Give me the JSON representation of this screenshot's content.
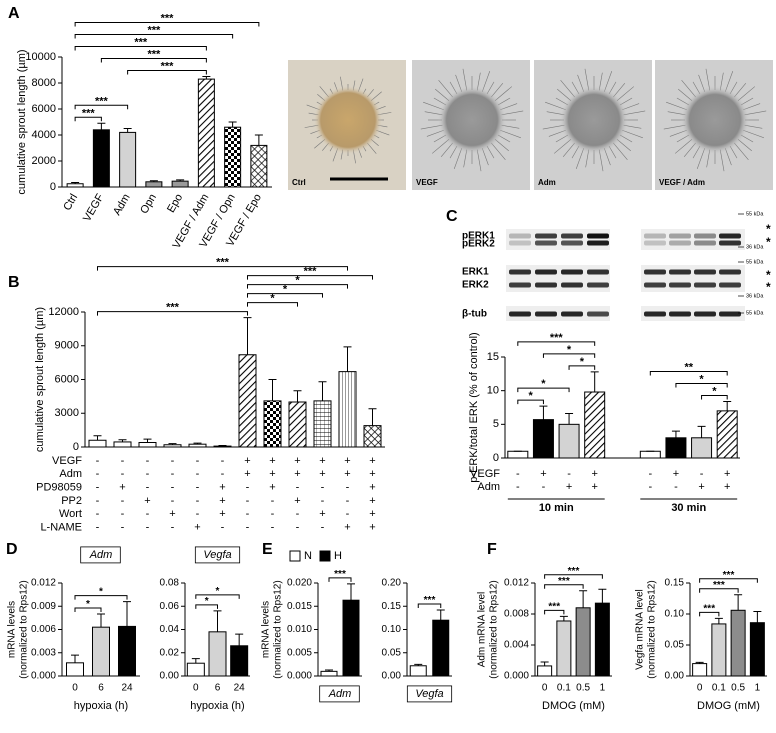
{
  "panels": [
    "A",
    "B",
    "C",
    "D",
    "E",
    "F"
  ],
  "photos": [
    "Ctrl",
    "VEGF",
    "Adm",
    "VEGF / Adm"
  ],
  "blot": {
    "rows": [
      "pERK1",
      "pERK2",
      "ERK1",
      "ERK2",
      "β-tub"
    ],
    "markers": [
      "55 kDa",
      "36 kDa",
      "55 kDa",
      "36 kDa",
      "55 kDa"
    ],
    "asterisks": [
      "*",
      "*",
      "*",
      "*"
    ]
  },
  "chart_data": [
    {
      "type": "bar",
      "ylabel": "cumulative sprout length (µm)",
      "categories": [
        "Ctrl",
        "VEGF",
        "Adm",
        "Opn",
        "Epo",
        "VEGF / Adm",
        "VEGF / Opn",
        "VEGF / Epo"
      ],
      "values": [
        250,
        4400,
        4200,
        400,
        450,
        8300,
        4600,
        3200
      ],
      "errors": [
        100,
        500,
        300,
        80,
        100,
        200,
        400,
        800
      ],
      "colors": [
        "#ffffff",
        "#000000",
        "#d3d3d3",
        "#9a9a9a",
        "#9a9a9a",
        "diagonal",
        "checker",
        "cross"
      ],
      "ylim": [
        0,
        10000
      ],
      "yticks": [
        0,
        2000,
        4000,
        6000,
        8000,
        10000
      ],
      "brackets": [
        {
          "from": 0,
          "to": 7,
          "label": "***"
        },
        {
          "from": 0,
          "to": 6,
          "label": "***"
        },
        {
          "from": 0,
          "to": 5,
          "label": "***"
        },
        {
          "from": 1,
          "to": 5,
          "label": "***"
        },
        {
          "from": 2,
          "to": 5,
          "label": "***"
        },
        {
          "from": 0,
          "to": 2,
          "label": "***"
        },
        {
          "from": 0,
          "to": 1,
          "label": "***"
        }
      ]
    },
    {
      "type": "bar",
      "ylabel": "cumulative sprout length (µm)",
      "values": [
        600,
        450,
        400,
        200,
        250,
        80,
        8200,
        4100,
        4000,
        4100,
        6700,
        1900
      ],
      "errors": [
        400,
        200,
        300,
        100,
        100,
        50,
        3300,
        1900,
        1000,
        1700,
        2200,
        1500
      ],
      "colors": [
        "#ffffff",
        "#ffffff",
        "#ffffff",
        "#ffffff",
        "#ffffff",
        "#ffffff",
        "diagonal",
        "checker",
        "diagonal",
        "grid",
        "vertical",
        "cross"
      ],
      "ylim": [
        0,
        12000
      ],
      "yticks": [
        0,
        3000,
        6000,
        9000,
        12000
      ],
      "table": [
        {
          "name": "VEGF",
          "values": [
            "-",
            "-",
            "-",
            "-",
            "-",
            "-",
            "+",
            "+",
            "+",
            "+",
            "+",
            "+"
          ]
        },
        {
          "name": "Adm",
          "values": [
            "-",
            "-",
            "-",
            "-",
            "-",
            "-",
            "+",
            "+",
            "+",
            "+",
            "+",
            "+"
          ]
        },
        {
          "name": "PD98059",
          "values": [
            "-",
            "+",
            "-",
            "-",
            "-",
            "+",
            "-",
            "+",
            "-",
            "-",
            "-",
            "+"
          ]
        },
        {
          "name": "PP2",
          "values": [
            "-",
            "-",
            "+",
            "-",
            "-",
            "+",
            "-",
            "-",
            "+",
            "-",
            "-",
            "+"
          ]
        },
        {
          "name": "Wort",
          "values": [
            "-",
            "-",
            "-",
            "+",
            "-",
            "+",
            "-",
            "-",
            "-",
            "+",
            "-",
            "+"
          ]
        },
        {
          "name": "L-NAME",
          "values": [
            "-",
            "-",
            "-",
            "-",
            "+",
            "-",
            "-",
            "-",
            "-",
            "-",
            "+",
            "+"
          ]
        }
      ],
      "brackets": [
        {
          "from": 0,
          "to": 10,
          "label": "***"
        },
        {
          "from": 6,
          "to": 11,
          "label": "***"
        },
        {
          "from": 6,
          "to": 10,
          "label": "*"
        },
        {
          "from": 6,
          "to": 9,
          "label": "*"
        },
        {
          "from": 6,
          "to": 8,
          "label": "*"
        },
        {
          "from": 0,
          "to": 6,
          "label": "***"
        }
      ]
    },
    {
      "type": "bar",
      "ylabel": "p-ERK/total ERK (% of control)",
      "values": [
        1,
        5.7,
        5,
        9.8,
        1,
        3,
        3,
        7
      ],
      "errors": [
        0,
        2,
        1.6,
        3,
        0,
        1,
        1.7,
        1.4
      ],
      "colors": [
        "#ffffff",
        "#000000",
        "#d3d3d3",
        "diagonal",
        "#ffffff",
        "#000000",
        "#d3d3d3",
        "diagonal"
      ],
      "ylim": [
        0,
        15
      ],
      "yticks": [
        0,
        5,
        10,
        15
      ],
      "table": [
        {
          "name": "VEGF",
          "values": [
            "-",
            "+",
            "-",
            "+",
            "-",
            "+",
            "-",
            "+"
          ]
        },
        {
          "name": "Adm",
          "values": [
            "-",
            "-",
            "+",
            "+",
            "-",
            "-",
            "+",
            "+"
          ]
        }
      ],
      "groups": [
        "10 min",
        "30 min"
      ],
      "brackets": [
        {
          "from": 0,
          "to": 3,
          "label": "***"
        },
        {
          "from": 1,
          "to": 3,
          "label": "*"
        },
        {
          "from": 2,
          "to": 3,
          "label": "*"
        },
        {
          "from": 0,
          "to": 2,
          "label": "*"
        },
        {
          "from": 0,
          "to": 1,
          "label": "*"
        },
        {
          "from": 4,
          "to": 7,
          "label": "**"
        },
        {
          "from": 5,
          "to": 7,
          "label": "*"
        },
        {
          "from": 6,
          "to": 7,
          "label": "*"
        }
      ]
    },
    {
      "type": "bar",
      "title": "Adm",
      "ylabel": [
        "mRNA levels",
        "(normalized to Rps12)"
      ],
      "xlabel": "hypoxia (h)",
      "categories": [
        "0",
        "6",
        "24"
      ],
      "values": [
        0.0017,
        0.0063,
        0.0064
      ],
      "errors": [
        0.001,
        0.0017,
        0.0032
      ],
      "colors": [
        "#ffffff",
        "#d3d3d3",
        "#000000"
      ],
      "ylim": [
        0,
        0.012
      ],
      "yticks": [
        {
          "value": 0,
          "label": "0.000"
        },
        {
          "value": 0.003,
          "label": "0.003"
        },
        {
          "value": 0.006,
          "label": "0.006"
        },
        {
          "value": 0.009,
          "label": "0.009"
        },
        {
          "value": 0.012,
          "label": "0.012"
        }
      ],
      "brackets": [
        {
          "from": 0,
          "to": 2,
          "label": "*"
        },
        {
          "from": 0,
          "to": 1,
          "label": "*"
        }
      ]
    },
    {
      "type": "bar",
      "title": "Vegfa",
      "xlabel": "hypoxia (h)",
      "categories": [
        "0",
        "6",
        "24"
      ],
      "values": [
        0.011,
        0.038,
        0.026
      ],
      "errors": [
        0.004,
        0.018,
        0.01
      ],
      "colors": [
        "#ffffff",
        "#d3d3d3",
        "#000000"
      ],
      "ylim": [
        0,
        0.08
      ],
      "yticks": [
        {
          "value": 0,
          "label": "0.00"
        },
        {
          "value": 0.02,
          "label": "0.02"
        },
        {
          "value": 0.04,
          "label": "0.04"
        },
        {
          "value": 0.06,
          "label": "0.06"
        },
        {
          "value": 0.08,
          "label": "0.08"
        }
      ],
      "brackets": [
        {
          "from": 0,
          "to": 2,
          "label": "*"
        },
        {
          "from": 0,
          "to": 1,
          "label": "*"
        }
      ]
    },
    {
      "type": "bar",
      "legend": [
        "N",
        "H"
      ],
      "ylabel": [
        "mRNA levels",
        "(normalized to Rps12)"
      ],
      "xlabel": "Adm",
      "values": [
        0.001,
        0.0163
      ],
      "errors": [
        0.0003,
        0.0035
      ],
      "colors": [
        "#ffffff",
        "#000000"
      ],
      "ylim": [
        0,
        0.02
      ],
      "yticks": [
        {
          "value": 0,
          "label": "0.000"
        },
        {
          "value": 0.005,
          "label": "0.005"
        },
        {
          "value": 0.01,
          "label": "0.010"
        },
        {
          "value": 0.015,
          "label": "0.015"
        },
        {
          "value": 0.02,
          "label": "0.020"
        }
      ],
      "brackets": [
        {
          "from": 0,
          "to": 1,
          "label": "***"
        }
      ]
    },
    {
      "type": "bar",
      "xlabel": "Vegfa",
      "values": [
        0.022,
        0.12
      ],
      "errors": [
        0.003,
        0.022
      ],
      "colors": [
        "#ffffff",
        "#000000"
      ],
      "ylim": [
        0,
        0.2
      ],
      "yticks": [
        {
          "value": 0,
          "label": "0.00"
        },
        {
          "value": 0.05,
          "label": "0.05"
        },
        {
          "value": 0.1,
          "label": "0.10"
        },
        {
          "value": 0.15,
          "label": "0.15"
        },
        {
          "value": 0.2,
          "label": "0.20"
        }
      ],
      "brackets": [
        {
          "from": 0,
          "to": 1,
          "label": "***"
        }
      ]
    },
    {
      "type": "bar",
      "ylabel": [
        "Adm mRNA level",
        "(normalized to Rps12)"
      ],
      "xlabel": "DMOG (mM)",
      "categories": [
        "0",
        "0.1",
        "0.5",
        "1"
      ],
      "values": [
        0.0013,
        0.0071,
        0.0088,
        0.0094
      ],
      "errors": [
        0.0005,
        0.0006,
        0.0022,
        0.0018
      ],
      "colors": [
        "#ffffff",
        "#d3d3d3",
        "#8c8c8c",
        "#000000"
      ],
      "ylim": [
        0,
        0.012
      ],
      "yticks": [
        {
          "value": 0,
          "label": "0.000"
        },
        {
          "value": 0.004,
          "label": "0.004"
        },
        {
          "value": 0.008,
          "label": "0.008"
        },
        {
          "value": 0.012,
          "label": "0.012"
        }
      ],
      "brackets": [
        {
          "from": 0,
          "to": 3,
          "label": "***"
        },
        {
          "from": 0,
          "to": 2,
          "label": "***"
        },
        {
          "from": 0,
          "to": 1,
          "label": "***"
        }
      ]
    },
    {
      "type": "bar",
      "ylabel": [
        "Vegfa mRNA level",
        "(normalized to Rps12)"
      ],
      "xlabel": "DMOG (mM)",
      "categories": [
        "0",
        "0.1",
        "0.5",
        "1"
      ],
      "values": [
        0.02,
        0.084,
        0.106,
        0.086
      ],
      "errors": [
        0.002,
        0.009,
        0.025,
        0.018
      ],
      "colors": [
        "#ffffff",
        "#d3d3d3",
        "#8c8c8c",
        "#000000"
      ],
      "ylim": [
        0,
        0.15
      ],
      "yticks": [
        {
          "value": 0,
          "label": "0.00"
        },
        {
          "value": 0.05,
          "label": "0.05"
        },
        {
          "value": 0.1,
          "label": "0.10"
        },
        {
          "value": 0.15,
          "label": "0.15"
        }
      ],
      "brackets": [
        {
          "from": 0,
          "to": 3,
          "label": "***"
        },
        {
          "from": 0,
          "to": 2,
          "label": "***"
        },
        {
          "from": 0,
          "to": 1,
          "label": "***"
        }
      ]
    }
  ]
}
